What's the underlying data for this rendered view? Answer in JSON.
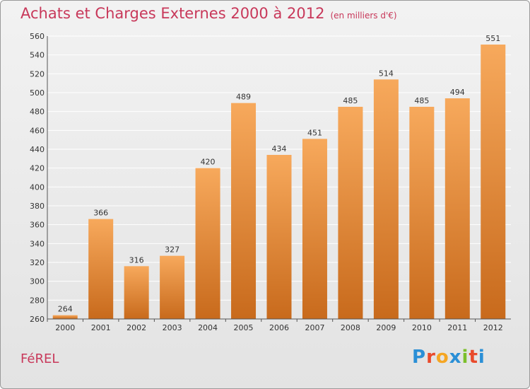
{
  "header": {
    "title": "Achats et Charges Externes 2000 à 2012",
    "subtitle": "(en milliers d'€)"
  },
  "footer": {
    "commune": "FéREL",
    "brand": "Proxiti"
  },
  "colors": {
    "title": "#c8385a",
    "bar_top": "#f7a95c",
    "bar_bottom": "#c86a1c",
    "grid": "#ffffff"
  },
  "chart_data": {
    "type": "bar",
    "categories": [
      "2000",
      "2001",
      "2002",
      "2003",
      "2004",
      "2005",
      "2006",
      "2007",
      "2008",
      "2009",
      "2010",
      "2011",
      "2012"
    ],
    "values": [
      264,
      366,
      316,
      327,
      420,
      489,
      434,
      451,
      485,
      514,
      485,
      494,
      551
    ],
    "ylim": [
      260,
      560
    ],
    "yticks": [
      260,
      280,
      300,
      320,
      340,
      360,
      380,
      400,
      420,
      440,
      460,
      480,
      500,
      520,
      540,
      560
    ],
    "grid": true,
    "xlabel": "",
    "ylabel": ""
  }
}
